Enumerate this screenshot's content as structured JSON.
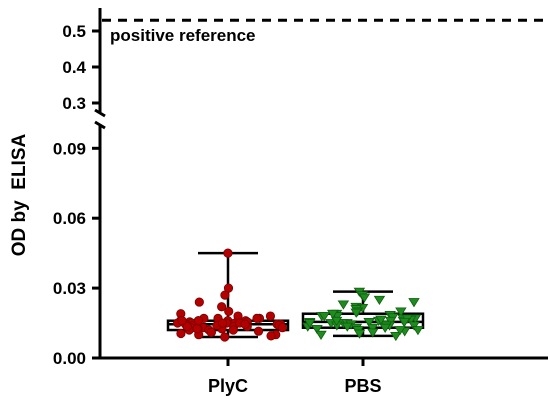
{
  "chart_data": {
    "type": "box-scatter",
    "ylabel": "OD by  ELISA",
    "y_axis_break": {
      "lower_range": [
        0,
        0.1
      ],
      "upper_range": [
        0.28,
        0.54
      ]
    },
    "lower_ticks": [
      "0.00",
      "0.03",
      "0.06",
      "0.09"
    ],
    "upper_ticks": [
      "0.3",
      "0.4",
      "0.5"
    ],
    "lower_tick_values": [
      0,
      0.03,
      0.06,
      0.09
    ],
    "upper_tick_values": [
      0.3,
      0.4,
      0.5
    ],
    "reference_line": {
      "label": "positive reference",
      "value": 0.53,
      "style": "dashed"
    },
    "categories": [
      "PlyC",
      "PBS"
    ],
    "series": [
      {
        "category": "PlyC",
        "marker": "circle",
        "color": "#b30000",
        "box": {
          "min": 0.009,
          "q1": 0.012,
          "median": 0.0145,
          "q3": 0.016,
          "max": 0.045
        },
        "points": [
          0.045,
          0.03,
          0.027,
          0.024,
          0.022,
          0.02,
          0.019,
          0.018,
          0.018,
          0.017,
          0.017,
          0.017,
          0.016,
          0.016,
          0.016,
          0.016,
          0.0155,
          0.0155,
          0.015,
          0.015,
          0.015,
          0.015,
          0.0145,
          0.0145,
          0.0145,
          0.014,
          0.014,
          0.014,
          0.014,
          0.0135,
          0.0135,
          0.013,
          0.013,
          0.013,
          0.0125,
          0.0125,
          0.012,
          0.012,
          0.012,
          0.0115,
          0.011,
          0.011,
          0.0105,
          0.01,
          0.01,
          0.0095,
          0.009,
          0.016,
          0.015,
          0.014,
          0.017,
          0.0145,
          0.0135,
          0.0125,
          0.015,
          0.016
        ]
      },
      {
        "category": "PBS",
        "marker": "triangle-down",
        "color": "#1e8c1e",
        "box": {
          "min": 0.0095,
          "q1": 0.013,
          "median": 0.0155,
          "q3": 0.019,
          "max": 0.0285
        },
        "points": [
          0.0285,
          0.027,
          0.026,
          0.025,
          0.024,
          0.023,
          0.022,
          0.0215,
          0.021,
          0.02,
          0.02,
          0.0195,
          0.019,
          0.019,
          0.0185,
          0.018,
          0.018,
          0.0175,
          0.017,
          0.017,
          0.0165,
          0.016,
          0.016,
          0.016,
          0.0155,
          0.0155,
          0.015,
          0.015,
          0.015,
          0.0145,
          0.0145,
          0.014,
          0.014,
          0.014,
          0.0135,
          0.0135,
          0.013,
          0.013,
          0.0125,
          0.012,
          0.012,
          0.0115,
          0.011,
          0.0105,
          0.01,
          0.0095,
          0.017,
          0.016,
          0.015,
          0.018,
          0.014,
          0.013,
          0.0165,
          0.0155,
          0.019,
          0.012
        ]
      }
    ]
  }
}
